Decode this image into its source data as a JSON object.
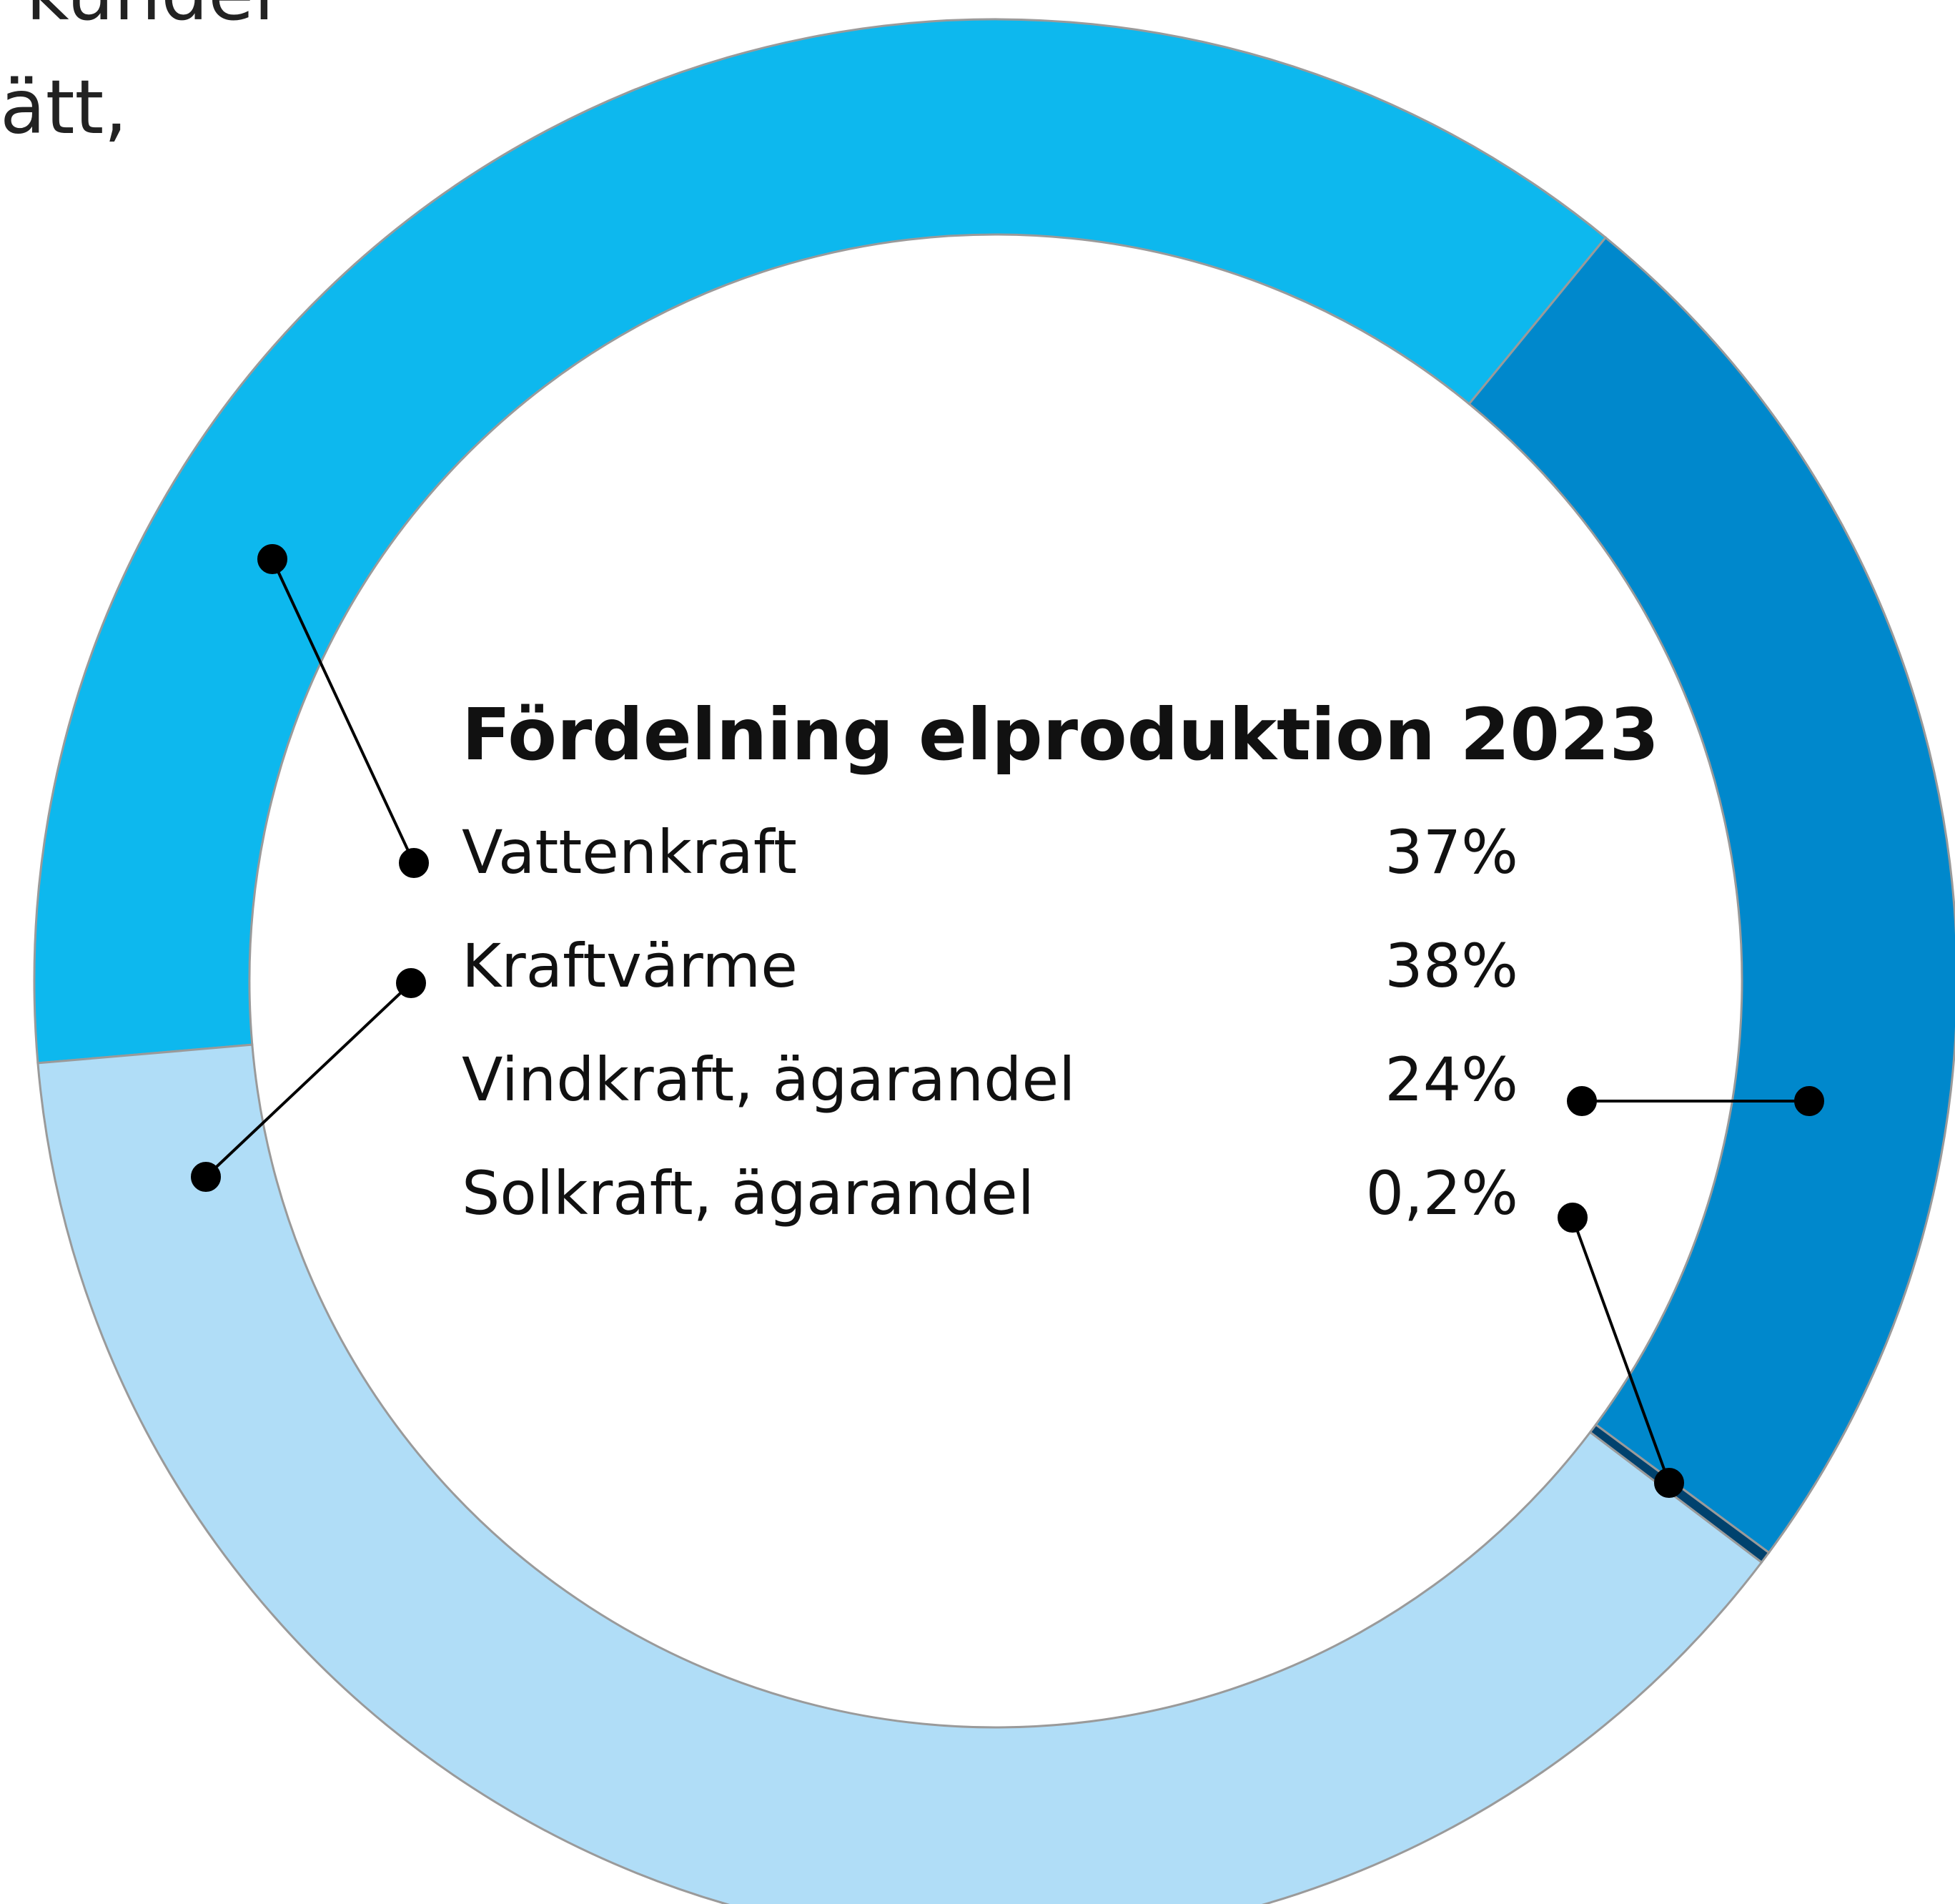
{
  "chart_data": {
    "type": "donut",
    "title": "Fördelning elproduktion 2023",
    "categories": [
      "Vattenkraft",
      "Kraftvärme",
      "Vindkraft, ägarandel",
      "Solkraft, ägarandel"
    ],
    "values": [
      37,
      38,
      24,
      0.2
    ],
    "value_labels": [
      "37%",
      "38%",
      "24%",
      "0,2%"
    ],
    "colors": [
      "#0db8ee",
      "#b0ddf7",
      "#0088cc",
      "#00426e"
    ],
    "background_text": [
      "a kunder",
      "ätt,"
    ]
  }
}
